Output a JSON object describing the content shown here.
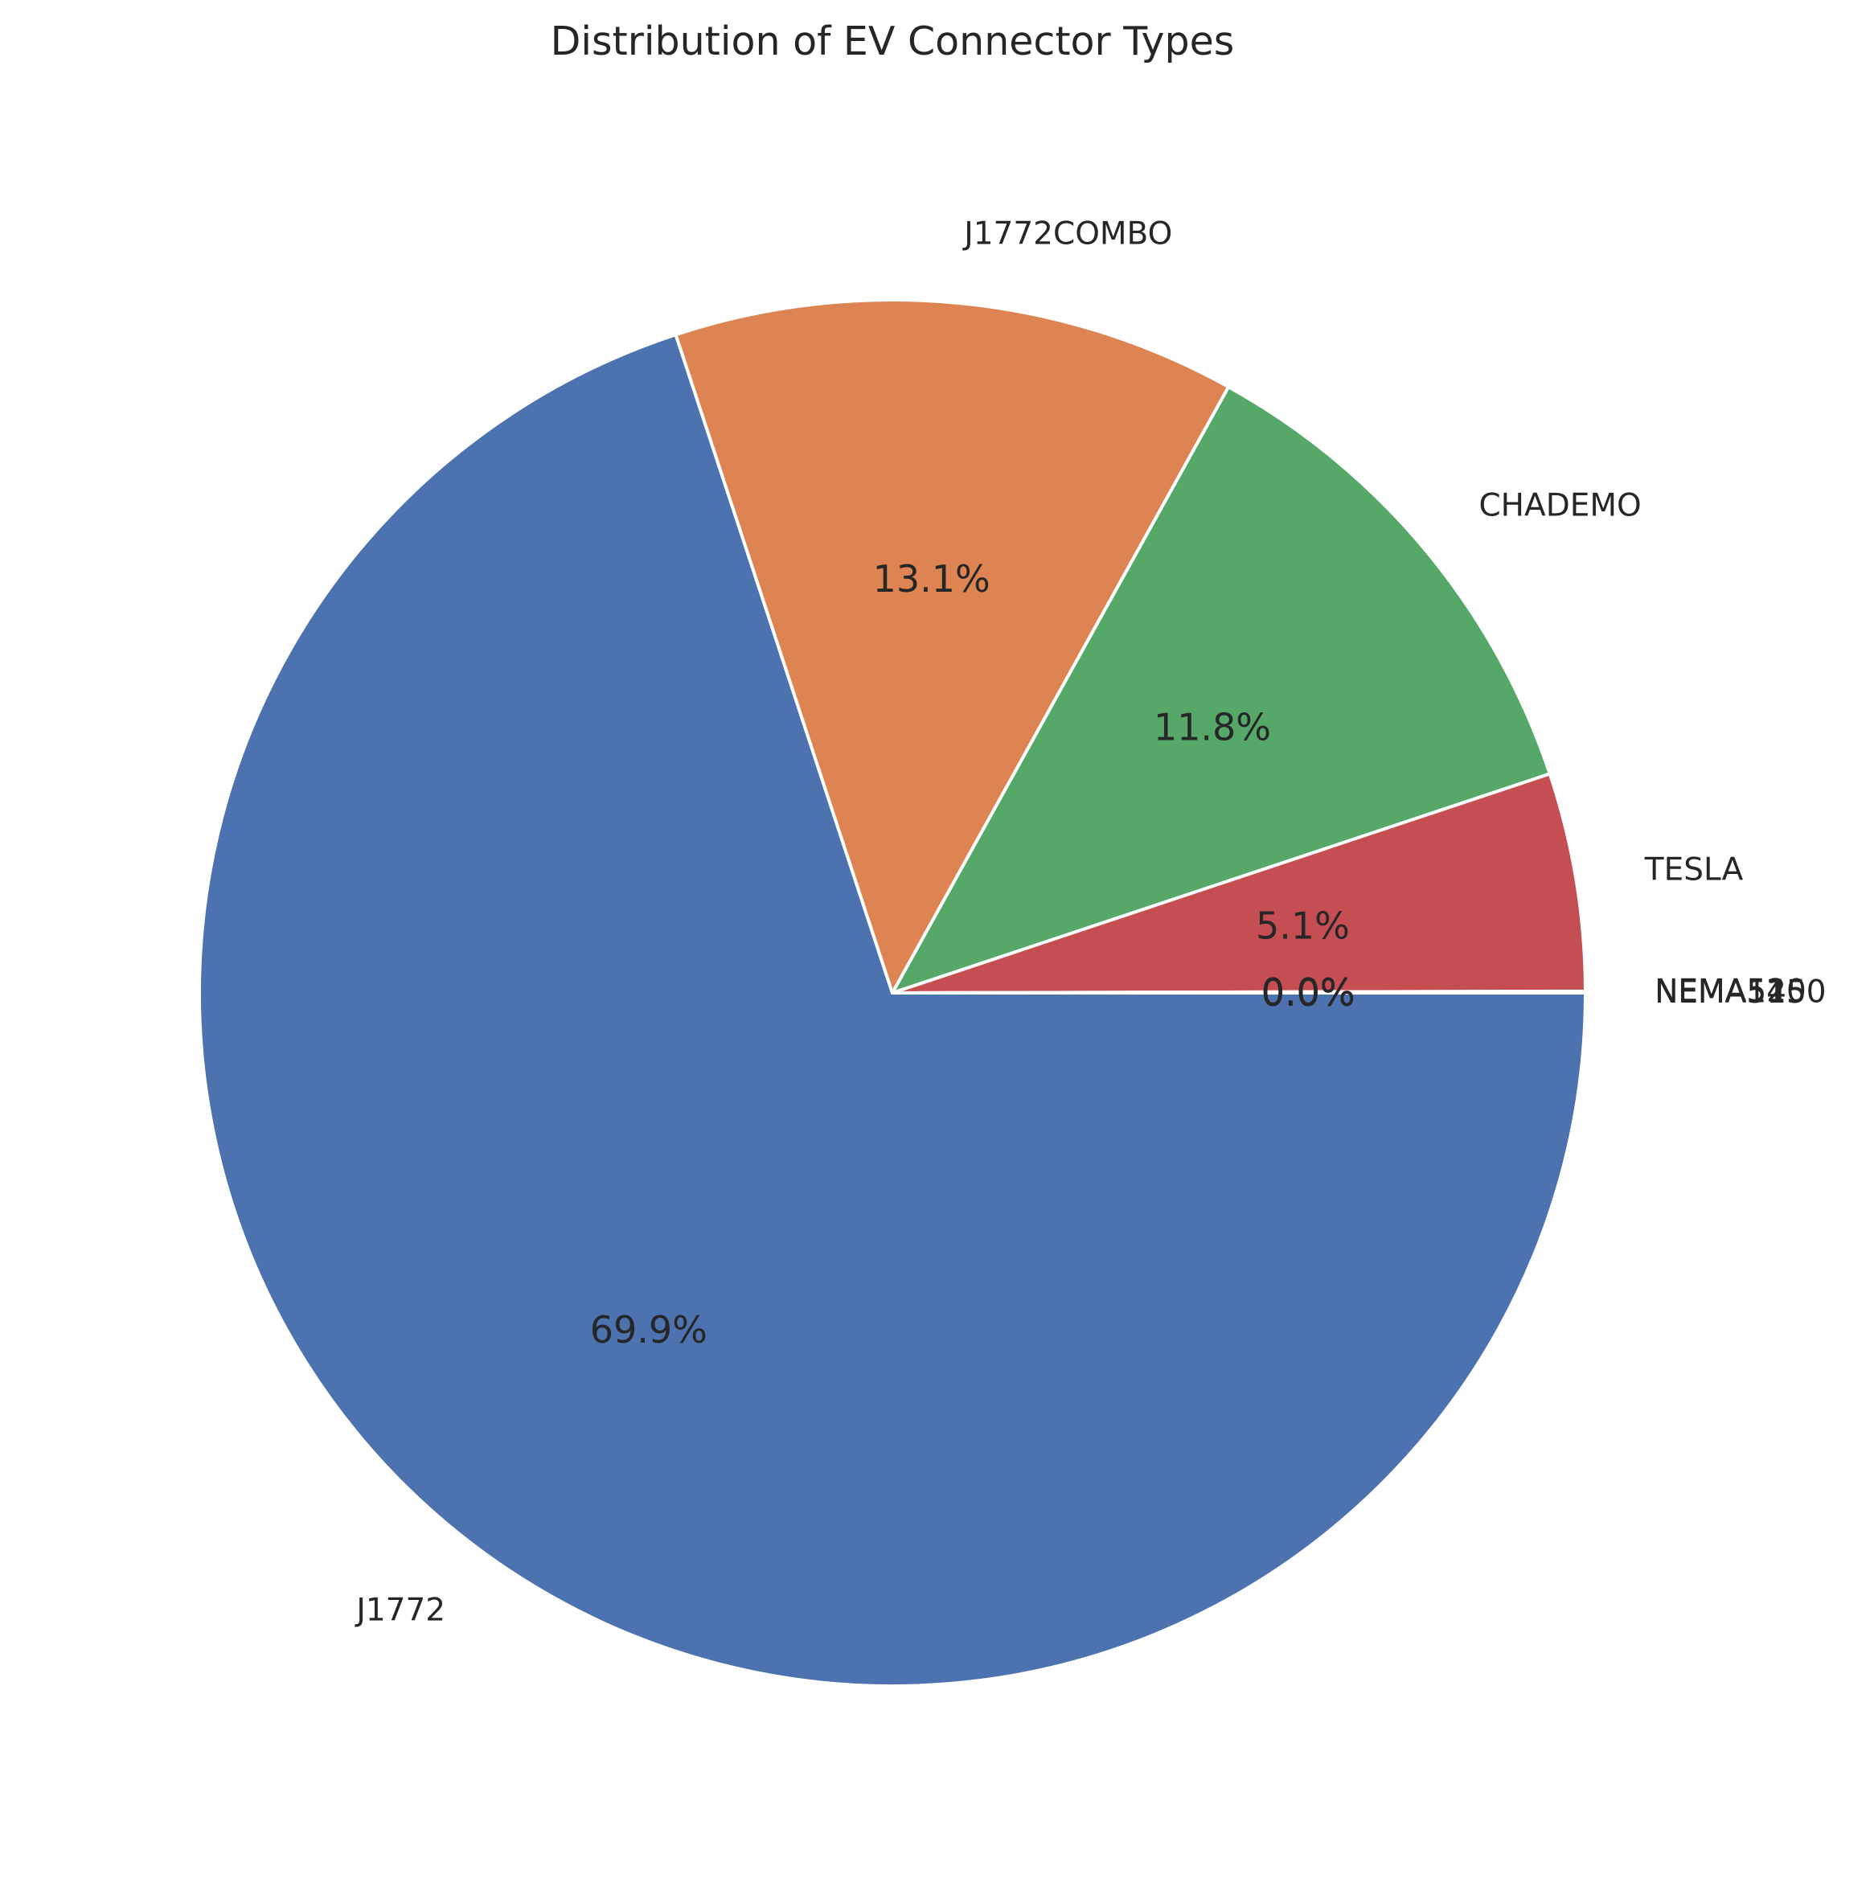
{
  "chart_data": {
    "type": "pie",
    "title": "Distribution of EV Connector Types",
    "categories": [
      "J1772",
      "J1772COMBO",
      "CHADEMO",
      "TESLA",
      "NEMA520",
      "NEMA1450",
      "NEMA515"
    ],
    "values": [
      69.94,
      13.12,
      11.82,
      5.08,
      0.02,
      0.01,
      0.01
    ],
    "percent_labels": [
      "69.9%",
      "13.1%",
      "11.8%",
      "5.1%",
      "0.0%",
      "0.0%",
      "0.0%"
    ],
    "colors": [
      "#4c72b0",
      "#dd8452",
      "#55a868",
      "#c44e52",
      "#8172b3",
      "#937860",
      "#da8bc3"
    ],
    "start_angle_deg": 0,
    "direction": "clockwise",
    "legend": "none",
    "grid": false
  }
}
